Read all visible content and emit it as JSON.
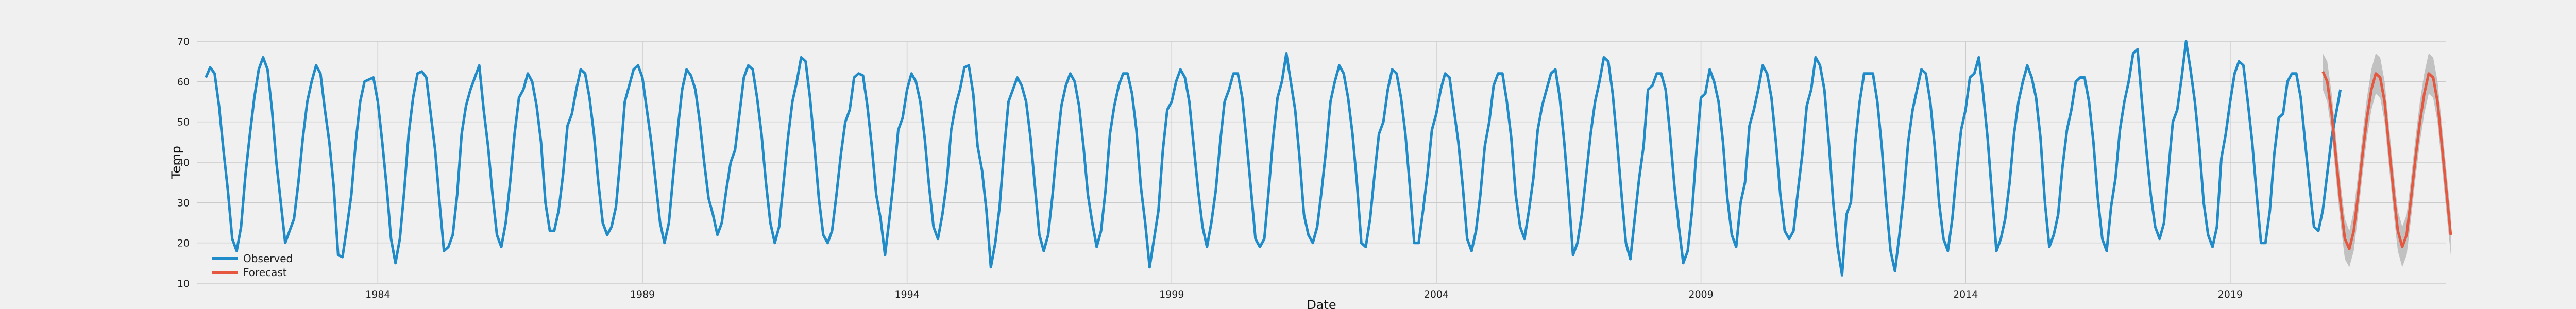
{
  "chart_data": {
    "type": "line",
    "title": "",
    "xlabel": "Date",
    "ylabel": "Temp",
    "xlim": [
      1980.58,
      2023.08
    ],
    "ylim": [
      10,
      70
    ],
    "x_ticks": [
      1984,
      1989,
      1994,
      1999,
      2004,
      2009,
      2014,
      2019
    ],
    "y_ticks": [
      10,
      20,
      30,
      40,
      50,
      60,
      70
    ],
    "grid": true,
    "legend_position": "lower-left",
    "series": [
      {
        "name": "Observed",
        "color": "#1f8bc8",
        "x_start": 1980.75,
        "x_step": 0.08333,
        "values": [
          61,
          63.5,
          62,
          54,
          43,
          33,
          21,
          18,
          24,
          37,
          47,
          56,
          63,
          66,
          63,
          53,
          40,
          30,
          20,
          23,
          26,
          35,
          46,
          55,
          60,
          64,
          62,
          53,
          45,
          34,
          17,
          16.5,
          24,
          32,
          45,
          55,
          60,
          60.5,
          61,
          55,
          45,
          34,
          21,
          15,
          21,
          33,
          47,
          56,
          62,
          62.5,
          61,
          52,
          43,
          30,
          18,
          19,
          22,
          32,
          47,
          54,
          58,
          61,
          64,
          53,
          44,
          32,
          22,
          19,
          25,
          35,
          47,
          56,
          58,
          62,
          60,
          54,
          45,
          30,
          23,
          23,
          28,
          37,
          49,
          52,
          58,
          63,
          62,
          56,
          47,
          35,
          25,
          22,
          24,
          29,
          41,
          55,
          59,
          63,
          64,
          61,
          53,
          45,
          35,
          25,
          20,
          25,
          37,
          48,
          58,
          63,
          61.5,
          58,
          50,
          40,
          31,
          27,
          22,
          25,
          33,
          40,
          43,
          52,
          61,
          64,
          63,
          56,
          47,
          35,
          25,
          20,
          24,
          35,
          46,
          55,
          60,
          66,
          65,
          56,
          44,
          31,
          22,
          20,
          23,
          32,
          42,
          50,
          53,
          61,
          62,
          61.5,
          54,
          44,
          32,
          26,
          17,
          26,
          36,
          48,
          51,
          58,
          62,
          60,
          55,
          46,
          34,
          24,
          21,
          27,
          35,
          48,
          54,
          58,
          63.5,
          64,
          57,
          44,
          38,
          28,
          14,
          20,
          29,
          43,
          55,
          58,
          61,
          59,
          55,
          46,
          34,
          22,
          18,
          22,
          32,
          44,
          54,
          59,
          62,
          60,
          54,
          44,
          32,
          25,
          19,
          23,
          33,
          47,
          54,
          59,
          62,
          62,
          57,
          48,
          34,
          25,
          14,
          21,
          28,
          43,
          53,
          55,
          60,
          63,
          61,
          55,
          44,
          33,
          24,
          19,
          25,
          33,
          45,
          55,
          58,
          62,
          62,
          56,
          45,
          33,
          21,
          19,
          21,
          33,
          46,
          56,
          60,
          67,
          60,
          53,
          41,
          27,
          22,
          20,
          24,
          33,
          43,
          55,
          60,
          64,
          62,
          56,
          47,
          35,
          20,
          19,
          26,
          37,
          47,
          50,
          58,
          63,
          62,
          56,
          47,
          34,
          20,
          20,
          28,
          37,
          48,
          52,
          58,
          62,
          61,
          53,
          45,
          34,
          21,
          18,
          23,
          32,
          44,
          50,
          59,
          62,
          62,
          55,
          46,
          32,
          24,
          21,
          28,
          36,
          48,
          54,
          58,
          62,
          63,
          56,
          45,
          32,
          17,
          20,
          27,
          37,
          47,
          55,
          60,
          66,
          65,
          57,
          45,
          32,
          20,
          16,
          26,
          36,
          44,
          58,
          59,
          62,
          62,
          58,
          47,
          34,
          24,
          15,
          18,
          28,
          43,
          56,
          57,
          63,
          60,
          55,
          45,
          31,
          22,
          19,
          30,
          35,
          49,
          53,
          58,
          64,
          62,
          56,
          45,
          32,
          23,
          21,
          23,
          33,
          42,
          54,
          58,
          66,
          64,
          58,
          45,
          30,
          19,
          12,
          27,
          30,
          45,
          55,
          62,
          62,
          62,
          55,
          44,
          30,
          18,
          13,
          22,
          32,
          45,
          53,
          58,
          63,
          62,
          55,
          44,
          30,
          21,
          18,
          26,
          38,
          48,
          53,
          61,
          62,
          66,
          57,
          46,
          32,
          18,
          21,
          26,
          35,
          47,
          55,
          60,
          64,
          61,
          56,
          46,
          30,
          19,
          22,
          27,
          39,
          48,
          53,
          60,
          61,
          61,
          55,
          45,
          31,
          21,
          18,
          29,
          36,
          48,
          55,
          60,
          67,
          68,
          55,
          43,
          32,
          24,
          21,
          25,
          38,
          50,
          53,
          61,
          70,
          63,
          55,
          44,
          30,
          22,
          19,
          24,
          41,
          47,
          55,
          62,
          65,
          64,
          55,
          45,
          32,
          20,
          20,
          28,
          42,
          51,
          52,
          60,
          62,
          62,
          56,
          45,
          34,
          24,
          23,
          28,
          37,
          46,
          52,
          58
        ]
      },
      {
        "name": "Forecast",
        "color": "#e5573f",
        "band_color": "#b5b5b5",
        "x_start": 2020.75,
        "x_step": 0.08333,
        "values": [
          62.5,
          60,
          52,
          41,
          30,
          21,
          18.5,
          23,
          32,
          42,
          51,
          58,
          62,
          61,
          55,
          44,
          33,
          23,
          19,
          22,
          31,
          41,
          50,
          57,
          62,
          61,
          55,
          44,
          33,
          22
        ],
        "lower": [
          58,
          55,
          47,
          36,
          25,
          16,
          14,
          18,
          27,
          37,
          46,
          53,
          57,
          56,
          50,
          39,
          28,
          18,
          14,
          17,
          26,
          36,
          45,
          52,
          57,
          56,
          50,
          39,
          28,
          17
        ],
        "upper": [
          67,
          65,
          57,
          46,
          35,
          26,
          23,
          28,
          37,
          47,
          56,
          63,
          67,
          66,
          60,
          49,
          38,
          28,
          24,
          27,
          36,
          46,
          55,
          62,
          67,
          66,
          60,
          49,
          38,
          27
        ]
      }
    ]
  }
}
